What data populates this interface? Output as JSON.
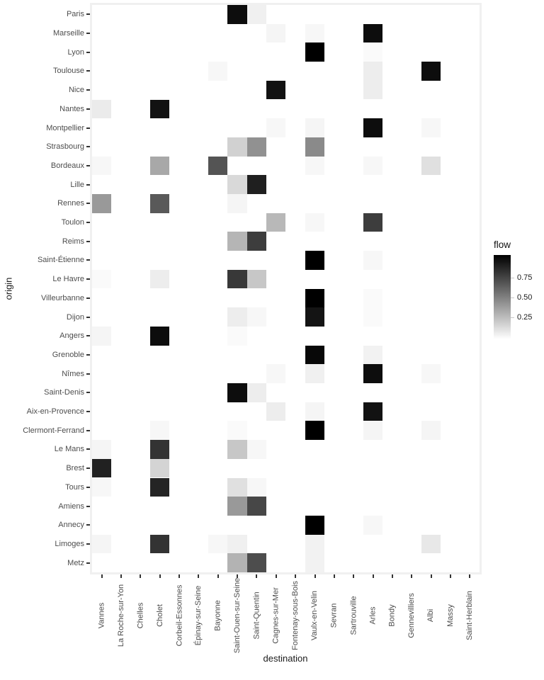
{
  "chart_data": {
    "type": "heatmap",
    "title": "",
    "xlabel": "destination",
    "ylabel": "origin",
    "x_categories": [
      "Vannes",
      "La Roche-sur-Yon",
      "Chelles",
      "Cholet",
      "Corbeil-Essonnes",
      "Épinay-sur-Seine",
      "Bayonne",
      "Saint-Ouen-sur-Seine",
      "Saint-Quentin",
      "Cagnes-sur-Mer",
      "Fontenay-sous-Bois",
      "Vaulx-en-Velin",
      "Sevran",
      "Sartrouville",
      "Arles",
      "Bondy",
      "Gennevilliers",
      "Albi",
      "Massy",
      "Saint-Herblain"
    ],
    "y_categories": [
      "Paris",
      "Marseille",
      "Lyon",
      "Toulouse",
      "Nice",
      "Nantes",
      "Montpellier",
      "Strasbourg",
      "Bordeaux",
      "Lille",
      "Rennes",
      "Toulon",
      "Reims",
      "Saint-Étienne",
      "Le Havre",
      "Villeurbanne",
      "Dijon",
      "Angers",
      "Grenoble",
      "Nîmes",
      "Saint-Denis",
      "Aix-en-Provence",
      "Clermont-Ferrand",
      "Le Mans",
      "Brest",
      "Tours",
      "Amiens",
      "Annecy",
      "Limoges",
      "Metz"
    ],
    "legend": {
      "title": "flow",
      "tick_labels": [
        "0.75",
        "0.50",
        "0.25"
      ],
      "tick_values": [
        0.75,
        0.5,
        0.25
      ],
      "range": [
        0,
        1
      ],
      "low_color": "#FFFFFF",
      "high_color": "#000000",
      "position": "right"
    },
    "panel_background": "#F0F0F0",
    "grid": false,
    "cells": [
      [
        "Paris",
        "Saint-Ouen-sur-Seine",
        0.95
      ],
      [
        "Paris",
        "Saint-Quentin",
        0.06
      ],
      [
        "Marseille",
        "Cagnes-sur-Mer",
        0.04
      ],
      [
        "Marseille",
        "Vaulx-en-Velin",
        0.03
      ],
      [
        "Marseille",
        "Arles",
        0.95
      ],
      [
        "Lyon",
        "Vaulx-en-Velin",
        1.0
      ],
      [
        "Lyon",
        "Arles",
        0.02
      ],
      [
        "Toulouse",
        "Bayonne",
        0.03
      ],
      [
        "Toulouse",
        "Arles",
        0.07
      ],
      [
        "Toulouse",
        "Albi",
        0.95
      ],
      [
        "Nice",
        "Cagnes-sur-Mer",
        0.93
      ],
      [
        "Nice",
        "Arles",
        0.07
      ],
      [
        "Nantes",
        "Vannes",
        0.08
      ],
      [
        "Nantes",
        "Cholet",
        0.93
      ],
      [
        "Montpellier",
        "Cagnes-sur-Mer",
        0.03
      ],
      [
        "Montpellier",
        "Vaulx-en-Velin",
        0.04
      ],
      [
        "Montpellier",
        "Arles",
        0.95
      ],
      [
        "Montpellier",
        "Albi",
        0.03
      ],
      [
        "Strasbourg",
        "Saint-Ouen-sur-Seine",
        0.18
      ],
      [
        "Strasbourg",
        "Saint-Quentin",
        0.43
      ],
      [
        "Strasbourg",
        "Vaulx-en-Velin",
        0.46
      ],
      [
        "Bordeaux",
        "Vannes",
        0.03
      ],
      [
        "Bordeaux",
        "Cholet",
        0.34
      ],
      [
        "Bordeaux",
        "Bayonne",
        0.67
      ],
      [
        "Bordeaux",
        "Vaulx-en-Velin",
        0.03
      ],
      [
        "Bordeaux",
        "Arles",
        0.03
      ],
      [
        "Bordeaux",
        "Albi",
        0.12
      ],
      [
        "Lille",
        "Saint-Ouen-sur-Seine",
        0.15
      ],
      [
        "Lille",
        "Saint-Quentin",
        0.88
      ],
      [
        "Rennes",
        "Vannes",
        0.4
      ],
      [
        "Rennes",
        "Cholet",
        0.65
      ],
      [
        "Rennes",
        "Saint-Ouen-sur-Seine",
        0.04
      ],
      [
        "Toulon",
        "Cagnes-sur-Mer",
        0.28
      ],
      [
        "Toulon",
        "Vaulx-en-Velin",
        0.03
      ],
      [
        "Toulon",
        "Arles",
        0.76
      ],
      [
        "Reims",
        "Saint-Ouen-sur-Seine",
        0.29
      ],
      [
        "Reims",
        "Saint-Quentin",
        0.76
      ],
      [
        "Saint-Étienne",
        "Vaulx-en-Velin",
        1.0
      ],
      [
        "Saint-Étienne",
        "Arles",
        0.03
      ],
      [
        "Le Havre",
        "Vannes",
        0.02
      ],
      [
        "Le Havre",
        "Cholet",
        0.07
      ],
      [
        "Le Havre",
        "Saint-Ouen-sur-Seine",
        0.78
      ],
      [
        "Le Havre",
        "Saint-Quentin",
        0.22
      ],
      [
        "Villeurbanne",
        "Vaulx-en-Velin",
        1.0
      ],
      [
        "Villeurbanne",
        "Arles",
        0.02
      ],
      [
        "Dijon",
        "Saint-Ouen-sur-Seine",
        0.07
      ],
      [
        "Dijon",
        "Saint-Quentin",
        0.03
      ],
      [
        "Dijon",
        "Vaulx-en-Velin",
        0.92
      ],
      [
        "Dijon",
        "Arles",
        0.02
      ],
      [
        "Angers",
        "Vannes",
        0.04
      ],
      [
        "Angers",
        "Cholet",
        0.95
      ],
      [
        "Angers",
        "Saint-Ouen-sur-Seine",
        0.02
      ],
      [
        "Grenoble",
        "Vaulx-en-Velin",
        0.97
      ],
      [
        "Grenoble",
        "Arles",
        0.05
      ],
      [
        "Nîmes",
        "Cagnes-sur-Mer",
        0.03
      ],
      [
        "Nîmes",
        "Vaulx-en-Velin",
        0.06
      ],
      [
        "Nîmes",
        "Arles",
        0.95
      ],
      [
        "Nîmes",
        "Albi",
        0.03
      ],
      [
        "Saint-Denis",
        "Saint-Ouen-sur-Seine",
        0.95
      ],
      [
        "Saint-Denis",
        "Saint-Quentin",
        0.07
      ],
      [
        "Aix-en-Provence",
        "Cagnes-sur-Mer",
        0.07
      ],
      [
        "Aix-en-Provence",
        "Vaulx-en-Velin",
        0.04
      ],
      [
        "Aix-en-Provence",
        "Arles",
        0.93
      ],
      [
        "Clermont-Ferrand",
        "Cholet",
        0.03
      ],
      [
        "Clermont-Ferrand",
        "Saint-Ouen-sur-Seine",
        0.02
      ],
      [
        "Clermont-Ferrand",
        "Vaulx-en-Velin",
        1.0
      ],
      [
        "Clermont-Ferrand",
        "Arles",
        0.04
      ],
      [
        "Clermont-Ferrand",
        "Albi",
        0.04
      ],
      [
        "Le Mans",
        "Vannes",
        0.04
      ],
      [
        "Le Mans",
        "Cholet",
        0.8
      ],
      [
        "Le Mans",
        "Saint-Ouen-sur-Seine",
        0.22
      ],
      [
        "Le Mans",
        "Saint-Quentin",
        0.03
      ],
      [
        "Brest",
        "Vannes",
        0.87
      ],
      [
        "Brest",
        "Cholet",
        0.17
      ],
      [
        "Tours",
        "Vannes",
        0.03
      ],
      [
        "Tours",
        "Cholet",
        0.86
      ],
      [
        "Tours",
        "Saint-Ouen-sur-Seine",
        0.12
      ],
      [
        "Tours",
        "Saint-Quentin",
        0.03
      ],
      [
        "Amiens",
        "Saint-Ouen-sur-Seine",
        0.4
      ],
      [
        "Amiens",
        "Saint-Quentin",
        0.72
      ],
      [
        "Annecy",
        "Vaulx-en-Velin",
        1.0
      ],
      [
        "Annecy",
        "Arles",
        0.03
      ],
      [
        "Limoges",
        "Vannes",
        0.04
      ],
      [
        "Limoges",
        "Cholet",
        0.8
      ],
      [
        "Limoges",
        "Bayonne",
        0.03
      ],
      [
        "Limoges",
        "Saint-Ouen-sur-Seine",
        0.06
      ],
      [
        "Limoges",
        "Vaulx-en-Velin",
        0.05
      ],
      [
        "Limoges",
        "Albi",
        0.09
      ],
      [
        "Metz",
        "Saint-Ouen-sur-Seine",
        0.3
      ],
      [
        "Metz",
        "Saint-Quentin",
        0.7
      ],
      [
        "Metz",
        "Vaulx-en-Velin",
        0.05
      ]
    ]
  }
}
